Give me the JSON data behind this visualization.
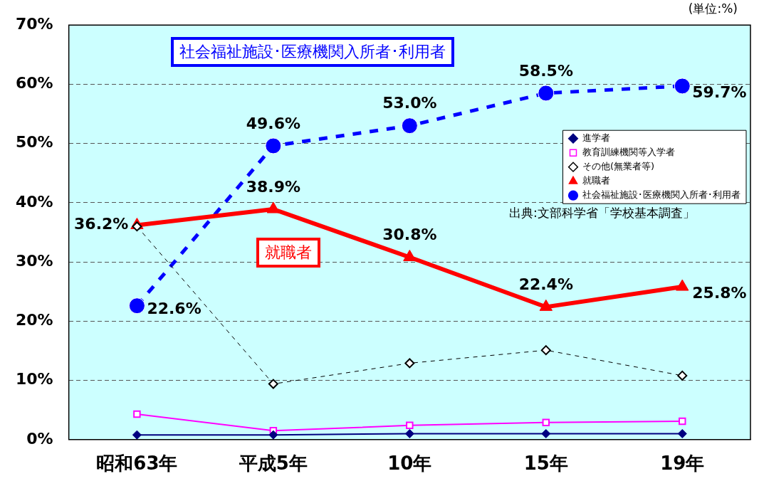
{
  "chart_data": {
    "type": "line",
    "categories": [
      "昭和63年",
      "平成5年",
      "10年",
      "15年",
      "19年"
    ],
    "series": [
      {
        "name": "進学者",
        "color": "#000080",
        "marker": "diamond",
        "line_style": "solid",
        "values": [
          0.8,
          0.8,
          1.0,
          1.0,
          1.0
        ]
      },
      {
        "name": "教育訓練機関等入学者",
        "color": "#ff00ff",
        "marker": "square",
        "line_style": "solid",
        "values": [
          4.3,
          1.5,
          2.4,
          2.9,
          3.1
        ]
      },
      {
        "name": "その他(無業者等)",
        "color": "#000000",
        "marker": "diamond",
        "line_style": "dashed",
        "values": [
          36.0,
          9.4,
          12.9,
          15.1,
          10.8
        ]
      },
      {
        "name": "就職者",
        "color": "#ff0000",
        "marker": "triangle",
        "line_style": "solid",
        "values": [
          36.2,
          38.9,
          30.8,
          22.4,
          25.8
        ],
        "value_labels": [
          "36.2%",
          "38.9%",
          "30.8%",
          "22.4%",
          "25.8%"
        ]
      },
      {
        "name": "社会福祉施設･医療機関入所者･利用者",
        "color": "#0000ff",
        "marker": "circle",
        "line_style": "dashed",
        "values": [
          22.6,
          49.6,
          53.0,
          58.5,
          59.7
        ],
        "value_labels": [
          "22.6%",
          "49.6%",
          "53.0%",
          "58.5%",
          "59.7%"
        ]
      }
    ],
    "ylim": [
      0,
      70
    ],
    "yticks": [
      {
        "value": 0,
        "label": "0%"
      },
      {
        "value": 10,
        "label": "10%"
      },
      {
        "value": 20,
        "label": "20%"
      },
      {
        "value": 30,
        "label": "30%"
      },
      {
        "value": 40,
        "label": "40%"
      },
      {
        "value": 50,
        "label": "50%"
      },
      {
        "value": 60,
        "label": "60%"
      },
      {
        "value": 70,
        "label": "70%"
      }
    ],
    "grid": "y",
    "legend": "right",
    "annotations": [
      "(単位:%)",
      "出典:文部科学省「学校基本調査」",
      "社会福祉施設･医療機関入所者･利用者",
      "就職者"
    ]
  }
}
